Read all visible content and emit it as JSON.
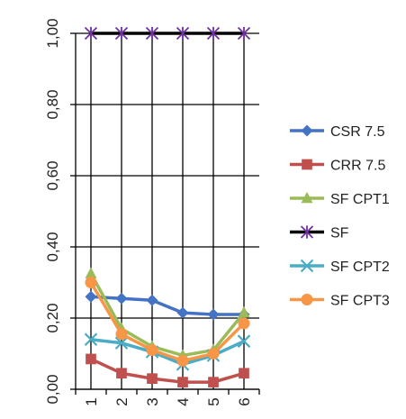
{
  "chart_data": {
    "type": "line",
    "title": "",
    "xlabel": "",
    "ylabel": "",
    "categories": [
      "1",
      "2",
      "3",
      "4",
      "5",
      "6"
    ],
    "ylim": [
      0,
      1
    ],
    "y_ticks": [
      "0,00",
      "0,20",
      "0,40",
      "0,60",
      "0,80",
      "1,00"
    ],
    "y_tick_values": [
      0,
      0.2,
      0.4,
      0.6,
      0.8,
      1.0
    ],
    "grid": true,
    "legend_position": "right",
    "tick_label_orientation": "rotated-90",
    "series": [
      {
        "name": "CSR 7.5",
        "color": "#4472C4",
        "marker": "diamond",
        "values": [
          0.26,
          0.255,
          0.25,
          0.215,
          0.21,
          0.21
        ]
      },
      {
        "name": "CRR 7.5",
        "color": "#C0504D",
        "marker": "square",
        "values": [
          0.085,
          0.045,
          0.03,
          0.02,
          0.02,
          0.045
        ]
      },
      {
        "name": "SF CPT1",
        "color": "#9BBB59",
        "marker": "triangle",
        "values": [
          0.325,
          0.17,
          0.12,
          0.095,
          0.11,
          0.215
        ]
      },
      {
        "name": "SF",
        "color": "#000000",
        "marker": "star",
        "values": [
          1.0,
          1.0,
          1.0,
          1.0,
          1.0,
          1.0
        ]
      },
      {
        "name": "SF CPT2",
        "color": "#4BACC6",
        "marker": "x",
        "values": [
          0.14,
          0.13,
          0.105,
          0.07,
          0.095,
          0.135
        ]
      },
      {
        "name": "SF CPT3",
        "color": "#F79646",
        "marker": "circle",
        "values": [
          0.3,
          0.155,
          0.11,
          0.08,
          0.1,
          0.185
        ]
      }
    ]
  }
}
